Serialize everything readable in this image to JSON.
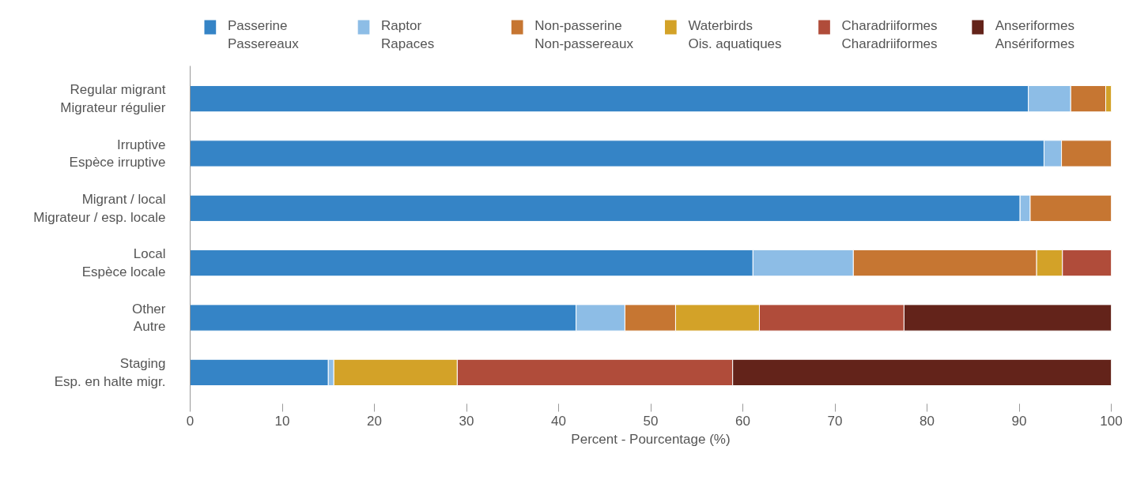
{
  "chart_data": {
    "type": "bar",
    "orientation": "horizontal",
    "stacked": true,
    "xlabel": "Percent - Pourcentage (%)",
    "categories": [
      "Regular migrant\nMigrateur régulier",
      "Irruptive\nEspèce irruptive",
      "Migrant / local\nMigrateur / esp. locale",
      "Local\nEspèce locale",
      "Other\nAutre",
      "Staging\nEsp. en halte migr."
    ],
    "series": [
      {
        "name": "Passerine\nPassereaux",
        "color": "#3584c6",
        "values": [
          91.0,
          92.7,
          90.1,
          61.1,
          41.9,
          15.0
        ]
      },
      {
        "name": "Raptor\nRapaces",
        "color": "#8dbde6",
        "values": [
          4.6,
          1.9,
          1.1,
          10.9,
          5.3,
          0.6
        ]
      },
      {
        "name": "Non-passerine\nNon-passereaux",
        "color": "#c67632",
        "values": [
          3.8,
          5.4,
          8.8,
          19.9,
          5.5,
          null
        ]
      },
      {
        "name": "Waterbirds\nOis. aquatiques",
        "color": "#d3a228",
        "values": [
          0.6,
          null,
          null,
          2.8,
          9.1,
          13.4
        ]
      },
      {
        "name": "Charadriiformes\nCharadriiformes",
        "color": "#b04c3a",
        "values": [
          null,
          null,
          null,
          5.3,
          15.7,
          29.9
        ]
      },
      {
        "name": "Anseriformes\nAnsériformes",
        "color": "#63231a",
        "values": [
          null,
          null,
          null,
          null,
          22.5,
          41.1
        ]
      }
    ],
    "xlim": [
      0,
      100
    ],
    "xticks": [
      0,
      10,
      20,
      30,
      40,
      50,
      60,
      70,
      80,
      90,
      100
    ],
    "grid": false,
    "legend": "top"
  }
}
